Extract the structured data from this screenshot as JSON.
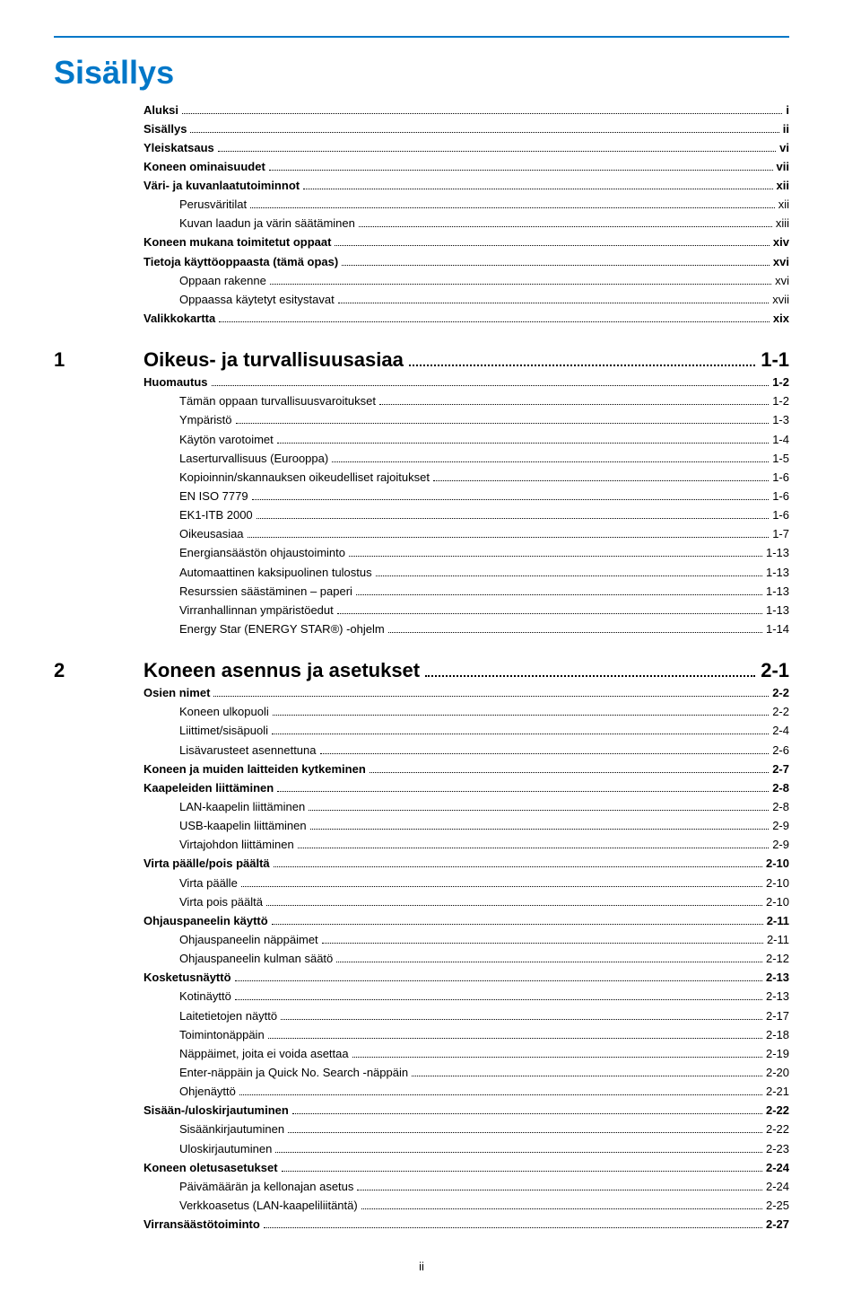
{
  "colors": {
    "accent": "#0077c8",
    "text": "#000000",
    "bg": "#ffffff"
  },
  "title": "Sisällys",
  "front": [
    {
      "label": "Aluksi",
      "page": "i",
      "indent": 0,
      "bold": true
    },
    {
      "label": "Sisällys",
      "page": "ii",
      "indent": 0,
      "bold": true
    },
    {
      "label": "Yleiskatsaus",
      "page": "vi",
      "indent": 0,
      "bold": true
    },
    {
      "label": "Koneen ominaisuudet",
      "page": "vii",
      "indent": 0,
      "bold": true
    },
    {
      "label": "Väri- ja kuvanlaatutoiminnot",
      "page": "xii",
      "indent": 0,
      "bold": true
    },
    {
      "label": "Perusväritilat",
      "page": "xii",
      "indent": 1,
      "bold": false
    },
    {
      "label": "Kuvan laadun ja värin säätäminen",
      "page": "xiii",
      "indent": 1,
      "bold": false
    },
    {
      "label": "Koneen mukana toimitetut oppaat",
      "page": "xiv",
      "indent": 0,
      "bold": true
    },
    {
      "label": "Tietoja käyttöoppaasta (tämä opas)",
      "page": "xvi",
      "indent": 0,
      "bold": true
    },
    {
      "label": "Oppaan rakenne",
      "page": "xvi",
      "indent": 1,
      "bold": false
    },
    {
      "label": "Oppaassa käytetyt esitystavat",
      "page": "xvii",
      "indent": 1,
      "bold": false
    },
    {
      "label": "Valikkokartta",
      "page": "xix",
      "indent": 0,
      "bold": true
    }
  ],
  "chapters": [
    {
      "num": "1",
      "title": "Oikeus- ja turvallisuusasiaa",
      "page": "1-1",
      "items": [
        {
          "label": "Huomautus",
          "page": "1-2",
          "indent": 0,
          "bold": true
        },
        {
          "label": "Tämän oppaan turvallisuusvaroitukset",
          "page": "1-2",
          "indent": 1,
          "bold": false
        },
        {
          "label": "Ympäristö",
          "page": "1-3",
          "indent": 1,
          "bold": false
        },
        {
          "label": "Käytön varotoimet",
          "page": "1-4",
          "indent": 1,
          "bold": false
        },
        {
          "label": "Laserturvallisuus (Eurooppa)",
          "page": "1-5",
          "indent": 1,
          "bold": false
        },
        {
          "label": "Kopioinnin/skannauksen oikeudelliset rajoitukset",
          "page": "1-6",
          "indent": 1,
          "bold": false
        },
        {
          "label": "EN ISO 7779",
          "page": "1-6",
          "indent": 1,
          "bold": false
        },
        {
          "label": "EK1-ITB 2000",
          "page": "1-6",
          "indent": 1,
          "bold": false
        },
        {
          "label": "Oikeusasiaa",
          "page": "1-7",
          "indent": 1,
          "bold": false
        },
        {
          "label": "Energiansäästön ohjaustoiminto",
          "page": "1-13",
          "indent": 1,
          "bold": false
        },
        {
          "label": "Automaattinen kaksipuolinen tulostus",
          "page": "1-13",
          "indent": 1,
          "bold": false
        },
        {
          "label": "Resurssien säästäminen – paperi",
          "page": "1-13",
          "indent": 1,
          "bold": false
        },
        {
          "label": "Virranhallinnan ympäristöedut",
          "page": "1-13",
          "indent": 1,
          "bold": false
        },
        {
          "label": "Energy Star (ENERGY STAR®) -ohjelm",
          "page": "1-14",
          "indent": 1,
          "bold": false
        }
      ]
    },
    {
      "num": "2",
      "title": "Koneen asennus ja asetukset",
      "page": "2-1",
      "items": [
        {
          "label": "Osien nimet",
          "page": "2-2",
          "indent": 0,
          "bold": true
        },
        {
          "label": "Koneen ulkopuoli",
          "page": "2-2",
          "indent": 1,
          "bold": false
        },
        {
          "label": "Liittimet/sisäpuoli",
          "page": "2-4",
          "indent": 1,
          "bold": false
        },
        {
          "label": "Lisävarusteet asennettuna",
          "page": "2-6",
          "indent": 1,
          "bold": false
        },
        {
          "label": "Koneen ja muiden laitteiden kytkeminen",
          "page": "2-7",
          "indent": 0,
          "bold": true
        },
        {
          "label": "Kaapeleiden liittäminen",
          "page": "2-8",
          "indent": 0,
          "bold": true
        },
        {
          "label": "LAN-kaapelin liittäminen",
          "page": "2-8",
          "indent": 1,
          "bold": false
        },
        {
          "label": "USB-kaapelin liittäminen",
          "page": "2-9",
          "indent": 1,
          "bold": false
        },
        {
          "label": "Virtajohdon liittäminen",
          "page": "2-9",
          "indent": 1,
          "bold": false
        },
        {
          "label": "Virta päälle/pois päältä",
          "page": "2-10",
          "indent": 0,
          "bold": true
        },
        {
          "label": "Virta päälle",
          "page": "2-10",
          "indent": 1,
          "bold": false
        },
        {
          "label": "Virta pois päältä",
          "page": "2-10",
          "indent": 1,
          "bold": false
        },
        {
          "label": "Ohjauspaneelin käyttö",
          "page": "2-11",
          "indent": 0,
          "bold": true
        },
        {
          "label": "Ohjauspaneelin näppäimet",
          "page": "2-11",
          "indent": 1,
          "bold": false
        },
        {
          "label": "Ohjauspaneelin kulman säätö",
          "page": "2-12",
          "indent": 1,
          "bold": false
        },
        {
          "label": "Kosketusnäyttö",
          "page": "2-13",
          "indent": 0,
          "bold": true
        },
        {
          "label": "Kotinäyttö",
          "page": "2-13",
          "indent": 1,
          "bold": false
        },
        {
          "label": "Laitetietojen näyttö",
          "page": "2-17",
          "indent": 1,
          "bold": false
        },
        {
          "label": "Toimintonäppäin",
          "page": "2-18",
          "indent": 1,
          "bold": false
        },
        {
          "label": "Näppäimet, joita ei voida asettaa",
          "page": "2-19",
          "indent": 1,
          "bold": false
        },
        {
          "label": "Enter-näppäin ja Quick No. Search -näppäin",
          "page": "2-20",
          "indent": 1,
          "bold": false
        },
        {
          "label": "Ohjenäyttö",
          "page": "2-21",
          "indent": 1,
          "bold": false
        },
        {
          "label": "Sisään-/uloskirjautuminen",
          "page": "2-22",
          "indent": 0,
          "bold": true
        },
        {
          "label": "Sisäänkirjautuminen",
          "page": "2-22",
          "indent": 1,
          "bold": false
        },
        {
          "label": "Uloskirjautuminen",
          "page": "2-23",
          "indent": 1,
          "bold": false
        },
        {
          "label": "Koneen oletusasetukset",
          "page": "2-24",
          "indent": 0,
          "bold": true
        },
        {
          "label": "Päivämäärän ja kellonajan asetus",
          "page": "2-24",
          "indent": 1,
          "bold": false
        },
        {
          "label": "Verkkoasetus (LAN-kaapeliliitäntä)",
          "page": "2-25",
          "indent": 1,
          "bold": false
        },
        {
          "label": "Virransäästötoiminto",
          "page": "2-27",
          "indent": 0,
          "bold": true
        }
      ]
    }
  ],
  "footer": "ii"
}
